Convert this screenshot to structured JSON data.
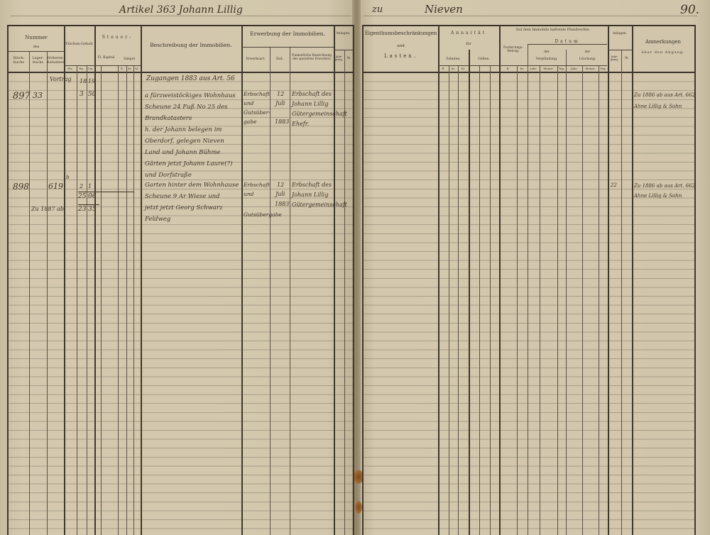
{
  "header_left": "Artikel 363 Johann Lillig",
  "header_right_prefix": "zu",
  "header_right_place": "Nieven",
  "folio": "90.",
  "left_columns": {
    "nummer": "Nummer",
    "des": "des",
    "stuckbuchs": "Stück-buchs",
    "lagerbuchs": "Lager-buchs",
    "fruherenkatasters": "früheren Katasters",
    "flachengehalt": "Flächen-Gehalt",
    "flach_units": [
      "Ma.",
      "Ru.",
      "Cm."
    ],
    "steuer": "Steuer-",
    "kapital": "Fl. Kapital",
    "simpel": "Simpel",
    "simpel_units": [
      "fl.",
      "kr.",
      "hl."
    ],
    "beschreibung": "Beschreibung der Immobilien.",
    "erwerbung": "Erwerbung der Immobilien.",
    "erwerbsart": "Erwerbsart.",
    "zeit": "Zeit.",
    "erwerber": "Namentliche Bezeichnung des speziellen Erwerbers",
    "anlagen": "Anlagen.",
    "jahrgang": "Jahr-gang.",
    "nr": "№"
  },
  "right_columns": {
    "eigentum": "Eigenthumsbeschränkungen",
    "und": "und",
    "lasten": "Lasten.",
    "annuitat": "Annuität",
    "fur": "für",
    "zehnten": "Zehnten.",
    "gulten": "Gülten.",
    "units": [
      "fl.",
      "kr.",
      "hl."
    ],
    "pfandrechte": "Auf dem Immobile haftende Pfandrechte.",
    "forderung": "Forderungs-Betrag.",
    "fk": [
      "fl.",
      "kr."
    ],
    "datum": "Datum",
    "der1": "der",
    "verpfandung": "Verpfändung.",
    "der2": "der",
    "loschung": "Löschung.",
    "date_units": [
      "Jahr.",
      "Monat.",
      "Tag.",
      "Jahr.",
      "Monat.",
      "Tag."
    ],
    "anlagen": "Anlagen.",
    "jahrgang": "Jahr-gang.",
    "nr": "№",
    "anmerkungen": "Anmerkungen",
    "abgang": "über den Abgang."
  },
  "entries": [
    {
      "intro": "Zugangen 1883 aus Art. 56",
      "carry": "Vortrag",
      "ma": "18",
      "ru": "19",
      "stuck": "897",
      "lager": "33",
      "ma2": "3",
      "ru2": "50",
      "desc": [
        "a fürzweistöckiges Wohnhaus",
        "Scheune 24 Fuß No 25 des",
        "Brandkatasters",
        "h. der Johann belegen im",
        "Oberdorf, gelegen Nieven",
        "Land und Johann Bühme",
        "Gärten jetzt Johann Laure(?)",
        "und Dorfstraße"
      ],
      "erwerb": [
        "Erbschaft",
        "und",
        "Gutsüber-",
        "gabe"
      ],
      "zeit_m": "12",
      "zeit_monat": "Juli",
      "zeit_j": "1883",
      "erwerber": [
        "Erbschaft des",
        "Johann Lillig",
        "Gütergemeinschaft",
        "Ehefr."
      ],
      "anm": [
        "Zu 1886 ab aus Art. 662",
        "Ahne Lillig & Sohn"
      ]
    },
    {
      "stuck": "898",
      "lager": "619",
      "sub": "b",
      "ma": "2",
      "ru": "1",
      "sum_ma": "25",
      "sum_ru": "06",
      "abgang": "Zu 1887 ab",
      "rest_ma": "23",
      "rest_ru": "35",
      "desc": [
        "Garten hinter dem Wohnhause",
        "Scheune 9 Ar Wiese und",
        "jetzt jetzt Georg Schwarz",
        "Feldweg"
      ],
      "erwerb": [
        "Erbschaft",
        "und",
        "Gutsübergabe"
      ],
      "zeit_m": "12",
      "zeit_monat": "Juli",
      "zeit_j": "1883",
      "erwerber": [
        "Erbschaft des",
        "Johann Lillig",
        "Gütergemeinschaft"
      ],
      "anlage": "22",
      "anm": [
        "Zu 1886 ab aus Art. 662",
        "Ahne Lillig & Sohn"
      ]
    }
  ]
}
